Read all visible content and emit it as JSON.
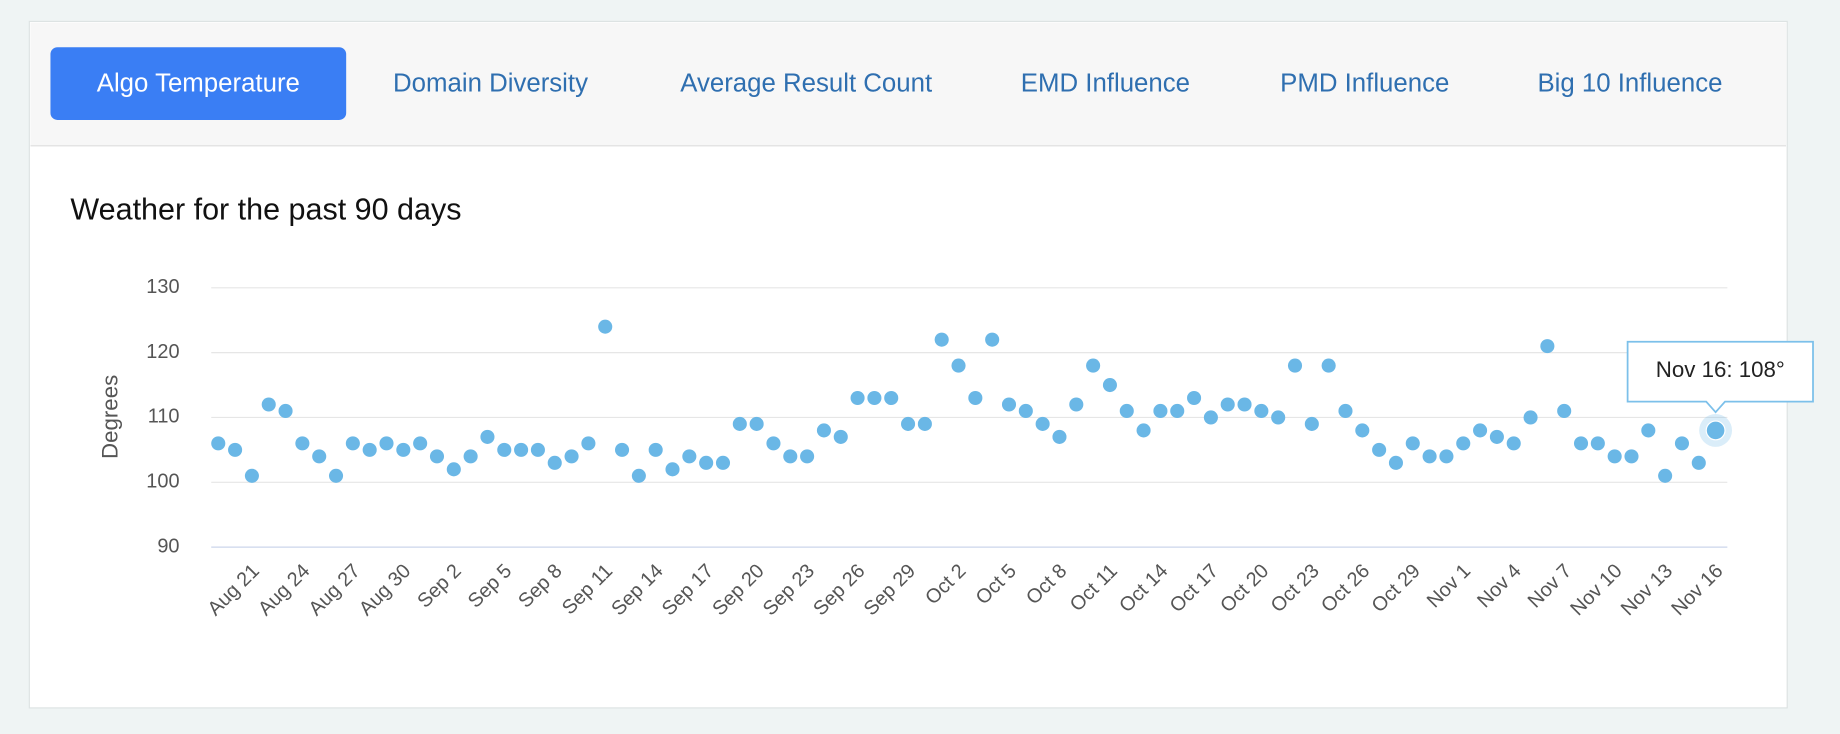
{
  "tabs": [
    "Algo Temperature",
    "Domain Diversity",
    "Average Result Count",
    "EMD Influence",
    "PMD Influence",
    "Big 10 Influence"
  ],
  "chart_data": {
    "type": "line",
    "title": "Weather for the past 90 days",
    "y_label": "Degrees",
    "categories": [
      null,
      null,
      "Aug 21",
      null,
      null,
      "Aug 24",
      null,
      null,
      "Aug 27",
      null,
      null,
      "Aug 30",
      null,
      null,
      "Sep 2",
      null,
      null,
      "Sep 5",
      null,
      null,
      "Sep 8",
      null,
      null,
      "Sep 11",
      null,
      null,
      "Sep 14",
      null,
      null,
      "Sep 17",
      null,
      null,
      "Sep 20",
      null,
      null,
      "Sep 23",
      null,
      null,
      "Sep 26",
      null,
      null,
      "Sep 29",
      null,
      null,
      "Oct 2",
      null,
      null,
      "Oct 5",
      null,
      null,
      "Oct 8",
      null,
      null,
      "Oct 11",
      null,
      null,
      "Oct 14",
      null,
      null,
      "Oct 17",
      null,
      null,
      "Oct 20",
      null,
      null,
      "Oct 23",
      null,
      null,
      "Oct 26",
      null,
      null,
      "Oct 29",
      null,
      null,
      "Nov 1",
      null,
      null,
      "Nov 4",
      null,
      null,
      "Nov 7",
      null,
      null,
      "Nov 10",
      null,
      null,
      "Nov 13",
      null,
      null,
      "Nov 16"
    ],
    "series": [
      {
        "color": "#6ab7e6",
        "values": [
          106,
          105,
          101,
          112,
          111,
          106,
          104,
          101,
          106,
          105,
          106,
          105,
          106,
          104,
          102,
          104,
          107,
          105,
          105,
          105,
          103,
          104,
          106,
          124,
          105,
          101,
          105,
          102,
          104,
          103,
          103,
          109,
          109,
          106,
          104,
          104,
          108,
          107,
          113,
          113,
          113,
          109,
          109,
          122,
          118,
          113,
          122,
          112,
          111,
          109,
          107,
          112,
          118,
          115,
          111,
          108,
          111,
          111,
          113,
          110,
          112,
          112,
          111,
          110,
          118,
          109,
          118,
          111,
          108,
          105,
          103,
          106,
          104,
          104,
          106,
          108,
          107,
          106,
          110,
          121,
          111,
          106,
          106,
          104,
          104,
          108,
          101,
          106,
          103,
          108
        ]
      }
    ],
    "ylim": [
      90,
      130
    ],
    "yticks": [
      90,
      100,
      110,
      120,
      130
    ],
    "grid": true,
    "tooltip": "Nov 16: 108°"
  }
}
